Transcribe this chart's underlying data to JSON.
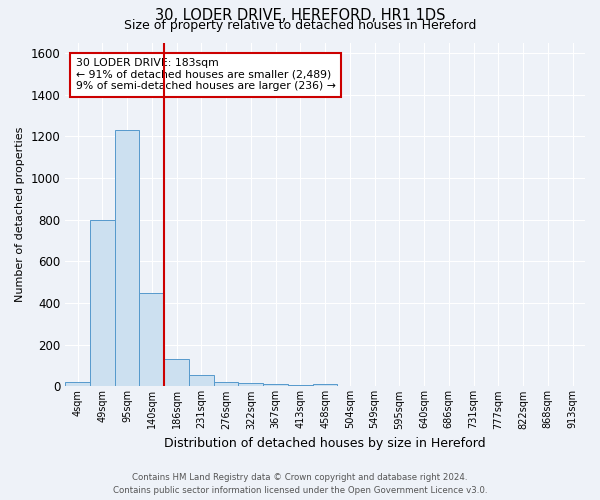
{
  "title1": "30, LODER DRIVE, HEREFORD, HR1 1DS",
  "title2": "Size of property relative to detached houses in Hereford",
  "xlabel": "Distribution of detached houses by size in Hereford",
  "ylabel": "Number of detached properties",
  "bin_labels": [
    "4sqm",
    "49sqm",
    "95sqm",
    "140sqm",
    "186sqm",
    "231sqm",
    "276sqm",
    "322sqm",
    "367sqm",
    "413sqm",
    "458sqm",
    "504sqm",
    "549sqm",
    "595sqm",
    "640sqm",
    "686sqm",
    "731sqm",
    "777sqm",
    "822sqm",
    "868sqm",
    "913sqm"
  ],
  "bar_values": [
    20,
    800,
    1230,
    450,
    130,
    55,
    20,
    15,
    10,
    5,
    10,
    0,
    0,
    0,
    0,
    0,
    0,
    0,
    0,
    0,
    0
  ],
  "bar_color": "#cce0f0",
  "bar_edge_color": "#5599cc",
  "vline_color": "#cc0000",
  "annotation_text": "30 LODER DRIVE: 183sqm\n← 91% of detached houses are smaller (2,489)\n9% of semi-detached houses are larger (236) →",
  "annotation_box_color": "#ffffff",
  "annotation_box_edge_color": "#cc0000",
  "ylim": [
    0,
    1650
  ],
  "yticks": [
    0,
    200,
    400,
    600,
    800,
    1000,
    1200,
    1400,
    1600
  ],
  "footer1": "Contains HM Land Registry data © Crown copyright and database right 2024.",
  "footer2": "Contains public sector information licensed under the Open Government Licence v3.0.",
  "bg_color": "#eef2f8"
}
